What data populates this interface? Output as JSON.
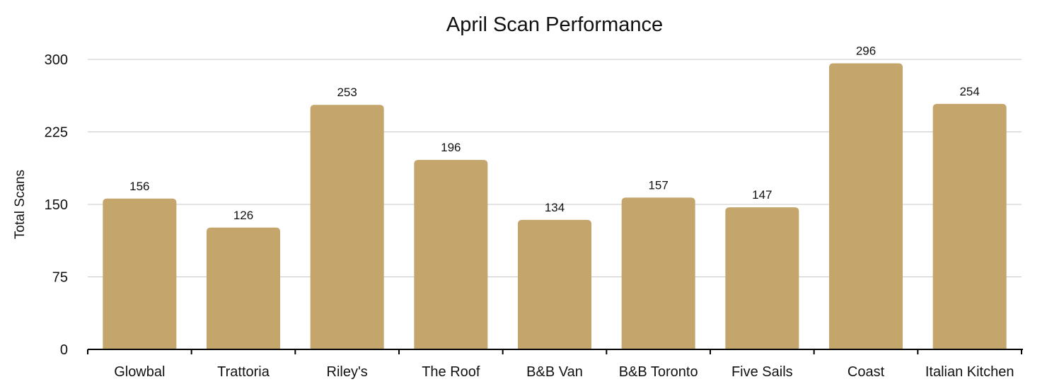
{
  "chart_data": {
    "type": "bar",
    "title": "April Scan Performance",
    "xlabel": "",
    "ylabel": "Total Scans",
    "categories": [
      "Glowbal",
      "Trattoria",
      "Riley's",
      "The Roof",
      "B&B Van",
      "B&B Toronto",
      "Five Sails",
      "Coast",
      "Italian Kitchen"
    ],
    "values": [
      156,
      126,
      253,
      196,
      134,
      157,
      147,
      296,
      254
    ],
    "data_labels": [
      "156",
      "126",
      "253",
      "196",
      "134",
      "157",
      "147",
      "296",
      "254"
    ],
    "yticks": [
      0,
      75,
      150,
      225,
      300
    ],
    "ytick_labels": [
      "0",
      "75",
      "150",
      "225",
      "300"
    ],
    "ylim": [
      0,
      300
    ],
    "grid": true,
    "legend": "none",
    "bar_color": "#c4a56c",
    "grid_color": "#c8c8c8",
    "axis_color": "#000000"
  }
}
